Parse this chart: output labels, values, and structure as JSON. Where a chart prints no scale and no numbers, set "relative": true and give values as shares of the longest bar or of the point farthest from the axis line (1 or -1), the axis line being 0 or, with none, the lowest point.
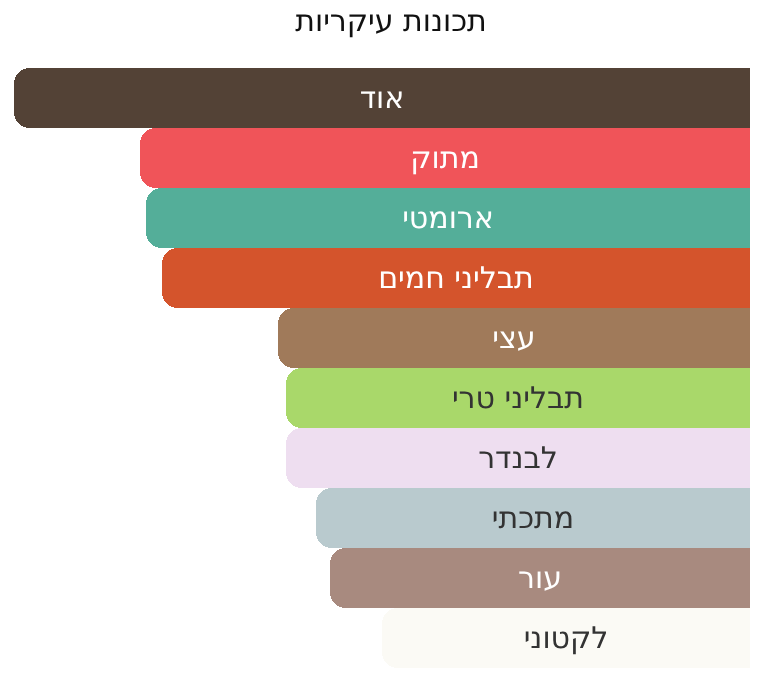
{
  "chart_data": {
    "type": "bar",
    "orientation": "horizontal",
    "relative": true,
    "title": "תכונות עיקריות",
    "categories": [
      "אוד",
      "מתוק",
      "ארומטי",
      "תבליני חמים",
      "עצי",
      "תבליני טרי",
      "לבנדר",
      "מתכתי",
      "עור",
      "לקטוני"
    ],
    "values": [
      1,
      0.83,
      0.82,
      0.8,
      0.64,
      0.63,
      0.63,
      0.59,
      0.57,
      0.5
    ],
    "colors": [
      "#534236",
      "#f05459",
      "#54ae99",
      "#d4542c",
      "#a07a5a",
      "#a9d86a",
      "#eedef0",
      "#b9cace",
      "#a88a7f",
      "#fbfaf5"
    ],
    "legend": false
  }
}
